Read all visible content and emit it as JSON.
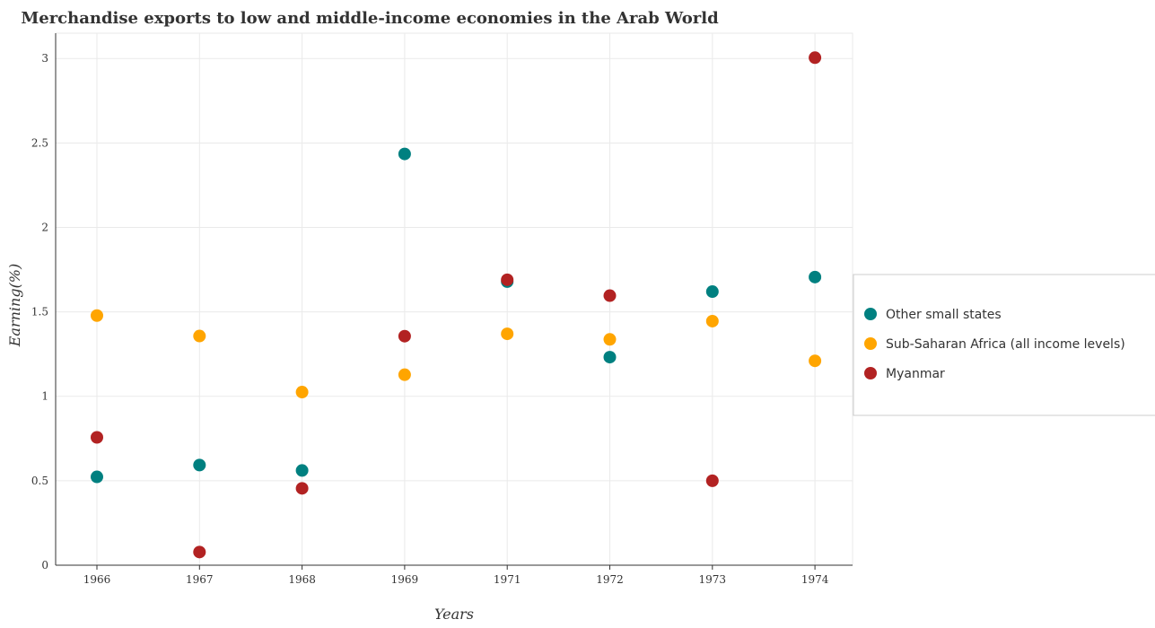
{
  "chart_data": {
    "type": "scatter",
    "title": "Merchandise exports to low and middle-income economies in the Arab World",
    "xlabel": "Years",
    "ylabel": "Earning(%)",
    "x": [
      "1966",
      "1967",
      "1968",
      "1969",
      "1971",
      "1972",
      "1973",
      "1974"
    ],
    "ylim": [
      0,
      3.15
    ],
    "yticks": [
      "0",
      "0.5",
      "1",
      "1.5",
      "2",
      "2.5",
      "3"
    ],
    "grid": true,
    "legend_position": "right",
    "series": [
      {
        "name": "Other small states",
        "color": "#008080",
        "values": [
          0.523,
          0.593,
          0.561,
          2.435,
          1.679,
          1.232,
          1.62,
          1.706
        ]
      },
      {
        "name": "Sub-Saharan Africa (all income levels)",
        "color": "#ffa500",
        "values": [
          1.478,
          1.357,
          1.025,
          1.128,
          1.37,
          1.337,
          1.445,
          1.21
        ]
      },
      {
        "name": "Myanmar",
        "color": "#b22222",
        "values": [
          0.757,
          0.078,
          0.455,
          1.356,
          1.69,
          1.596,
          0.5,
          3.005
        ]
      }
    ]
  }
}
